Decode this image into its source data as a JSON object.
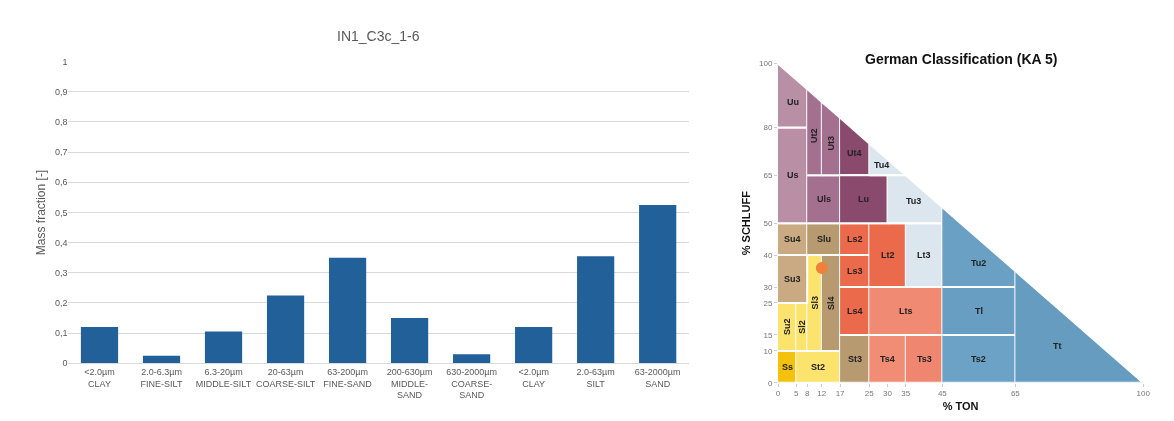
{
  "chart_data": [
    {
      "type": "bar",
      "title": "IN1_C3c_1-6",
      "ylabel": "Mass fraction [-]",
      "categories": [
        "<2.0µm\nCLAY",
        "2.0-6.3µm\nFINE-SILT",
        "6.3-20µm\nMIDDLE-SILT",
        "20-63µm\nCOARSE-SILT",
        "63-200µm\nFINE-SAND",
        "200-630µm\nMIDDLE-\nSAND",
        "630-2000µm\nCOARSE-\nSAND",
        "<2.0µm\nCLAY",
        "2.0-63µm\nSILT",
        "63-2000µm\nSAND"
      ],
      "values": [
        0.12,
        0.025,
        0.105,
        0.225,
        0.35,
        0.15,
        0.03,
        0.12,
        0.355,
        0.525
      ],
      "color": "#22609a",
      "ylim": [
        0,
        1
      ],
      "yticks": [
        {
          "value": 0,
          "label": "0"
        },
        {
          "value": 0.1,
          "label": "0,1"
        },
        {
          "value": 0.2,
          "label": "0,2"
        },
        {
          "value": 0.3,
          "label": "0,3"
        },
        {
          "value": 0.4,
          "label": "0,4"
        },
        {
          "value": 0.5,
          "label": "0,5"
        },
        {
          "value": 0.6,
          "label": "0,6"
        },
        {
          "value": 0.7,
          "label": "0,7"
        },
        {
          "value": 0.8,
          "label": "0,8"
        },
        {
          "value": 0.9,
          "label": "0,9"
        },
        {
          "value": 1,
          "label": "1"
        }
      ],
      "grid": "y"
    },
    {
      "type": "scatter",
      "title": "German Classification (KA 5)",
      "xlabel": "% TON",
      "ylabel": "% SCHLUFF",
      "xlim": [
        0,
        100
      ],
      "ylim": [
        0,
        100
      ],
      "xticks": [
        0,
        5,
        8,
        12,
        17,
        25,
        30,
        35,
        45,
        65,
        100
      ],
      "yticks": [
        0,
        10,
        15,
        25,
        30,
        40,
        50,
        65,
        80,
        100
      ],
      "grid": false,
      "series": [
        {
          "type": "area",
          "name": "Ss",
          "color": "#f4c20d",
          "x": [
            0,
            5,
            5,
            0
          ],
          "values": [
            0,
            0,
            10,
            10
          ]
        },
        {
          "type": "area",
          "name": "St2",
          "color": "#fbe36e",
          "x": [
            5,
            17,
            17,
            5
          ],
          "values": [
            0,
            0,
            10,
            10
          ]
        },
        {
          "type": "area",
          "name": "Su2",
          "color": "#fbe36e",
          "x": [
            0,
            5,
            5,
            0
          ],
          "values": [
            10,
            10,
            25,
            25
          ]
        },
        {
          "type": "area",
          "name": "Sl2",
          "color": "#fbe36e",
          "x": [
            5,
            8,
            8,
            5
          ],
          "values": [
            10,
            10,
            25,
            25
          ]
        },
        {
          "type": "area",
          "name": "Sl3",
          "color": "#fbe36e",
          "x": [
            8,
            12,
            12,
            8
          ],
          "values": [
            10,
            10,
            40,
            40
          ]
        },
        {
          "type": "area",
          "name": "Sl4",
          "color": "#b89a70",
          "x": [
            12,
            17,
            17,
            12
          ],
          "values": [
            10,
            10,
            40,
            40
          ]
        },
        {
          "type": "area",
          "name": "Su3",
          "color": "#c9aa82",
          "x": [
            0,
            8,
            8,
            0
          ],
          "values": [
            25,
            25,
            40,
            40
          ]
        },
        {
          "type": "area",
          "name": "Su4",
          "color": "#c9aa82",
          "x": [
            0,
            8,
            8,
            0
          ],
          "values": [
            40,
            40,
            50,
            50
          ]
        },
        {
          "type": "area",
          "name": "Slu",
          "color": "#b89a70",
          "x": [
            8,
            17,
            17,
            8
          ],
          "values": [
            40,
            40,
            50,
            50
          ]
        },
        {
          "type": "area",
          "name": "St3",
          "color": "#b89a70",
          "x": [
            17,
            25,
            25,
            17
          ],
          "values": [
            0,
            0,
            15,
            15
          ]
        },
        {
          "type": "area",
          "name": "Ls4",
          "color": "#ec6a4c",
          "x": [
            17,
            25,
            25,
            17
          ],
          "values": [
            15,
            15,
            30,
            30
          ]
        },
        {
          "type": "area",
          "name": "Ls3",
          "color": "#ec6a4c",
          "x": [
            17,
            25,
            25,
            17
          ],
          "values": [
            30,
            30,
            40,
            40
          ]
        },
        {
          "type": "area",
          "name": "Ls2",
          "color": "#ec6a4c",
          "x": [
            17,
            25,
            25,
            17
          ],
          "values": [
            40,
            40,
            50,
            50
          ]
        },
        {
          "type": "area",
          "name": "Lt2",
          "color": "#ec6a4c",
          "x": [
            25,
            35,
            35,
            25
          ],
          "values": [
            30,
            30,
            50,
            50
          ]
        },
        {
          "type": "area",
          "name": "Lt3",
          "color": "#dce6ee",
          "x": [
            35,
            45,
            45,
            35
          ],
          "values": [
            30,
            30,
            50,
            50
          ]
        },
        {
          "type": "area",
          "name": "Lts",
          "color": "#f08a72",
          "x": [
            25,
            45,
            45,
            25
          ],
          "values": [
            15,
            15,
            30,
            30
          ]
        },
        {
          "type": "area",
          "name": "Ts4",
          "color": "#f18d75",
          "x": [
            25,
            35,
            35,
            25
          ],
          "values": [
            0,
            0,
            15,
            15
          ]
        },
        {
          "type": "area",
          "name": "Ts3",
          "color": "#ef8770",
          "x": [
            35,
            45,
            45,
            35
          ],
          "values": [
            0,
            0,
            15,
            15
          ]
        },
        {
          "type": "area",
          "name": "Us",
          "color": "#b98fa6",
          "x": [
            0,
            8,
            8,
            0
          ],
          "values": [
            50,
            50,
            80,
            80
          ]
        },
        {
          "type": "area",
          "name": "Uu",
          "color": "#b98fa6",
          "x": [
            0,
            8,
            8,
            0
          ],
          "values": [
            80,
            80,
            92,
            100
          ]
        },
        {
          "type": "area",
          "name": "Uls",
          "color": "#a3718f",
          "x": [
            8,
            17,
            17,
            8
          ],
          "values": [
            50,
            50,
            65,
            65
          ]
        },
        {
          "type": "area",
          "name": "Ut2",
          "color": "#a3718f",
          "x": [
            8,
            12,
            12,
            8
          ],
          "values": [
            65,
            65,
            88,
            92
          ]
        },
        {
          "type": "area",
          "name": "Ut3",
          "color": "#a3718f",
          "x": [
            12,
            17,
            17,
            12
          ],
          "values": [
            65,
            65,
            83,
            88
          ]
        },
        {
          "type": "area",
          "name": "Ut4",
          "color": "#8a4a6d",
          "x": [
            17,
            25,
            25,
            17
          ],
          "values": [
            65,
            65,
            75,
            83
          ]
        },
        {
          "type": "area",
          "name": "Lu",
          "color": "#8a4a6d",
          "x": [
            17,
            30,
            30,
            17
          ],
          "values": [
            50,
            50,
            65,
            65
          ]
        },
        {
          "type": "area",
          "name": "Tu4",
          "color": "#dce6ee",
          "x": [
            25,
            35,
            25
          ],
          "values": [
            65,
            65,
            75
          ]
        },
        {
          "type": "area",
          "name": "Tu3",
          "color": "#dce6ee",
          "x": [
            30,
            45,
            45,
            35,
            30
          ],
          "values": [
            50,
            50,
            55,
            65,
            65
          ]
        },
        {
          "type": "area",
          "name": "Tu2",
          "color": "#6aa0c3",
          "x": [
            45,
            65,
            65,
            45
          ],
          "values": [
            30,
            30,
            35,
            55
          ]
        },
        {
          "type": "area",
          "name": "Tl",
          "color": "#689ec1",
          "x": [
            45,
            65,
            65,
            45
          ],
          "values": [
            15,
            15,
            30,
            30
          ]
        },
        {
          "type": "area",
          "name": "Ts2",
          "color": "#6ca2c5",
          "x": [
            45,
            65,
            65,
            45
          ],
          "values": [
            0,
            0,
            15,
            15
          ]
        },
        {
          "type": "area",
          "name": "Tt",
          "color": "#669cbf",
          "x": [
            65,
            100,
            65
          ],
          "values": [
            0,
            0,
            35
          ]
        },
        {
          "type": "scatter",
          "marker": "circle",
          "color": "#f0803a",
          "x": [
            12
          ],
          "values": [
            36
          ]
        }
      ]
    }
  ]
}
